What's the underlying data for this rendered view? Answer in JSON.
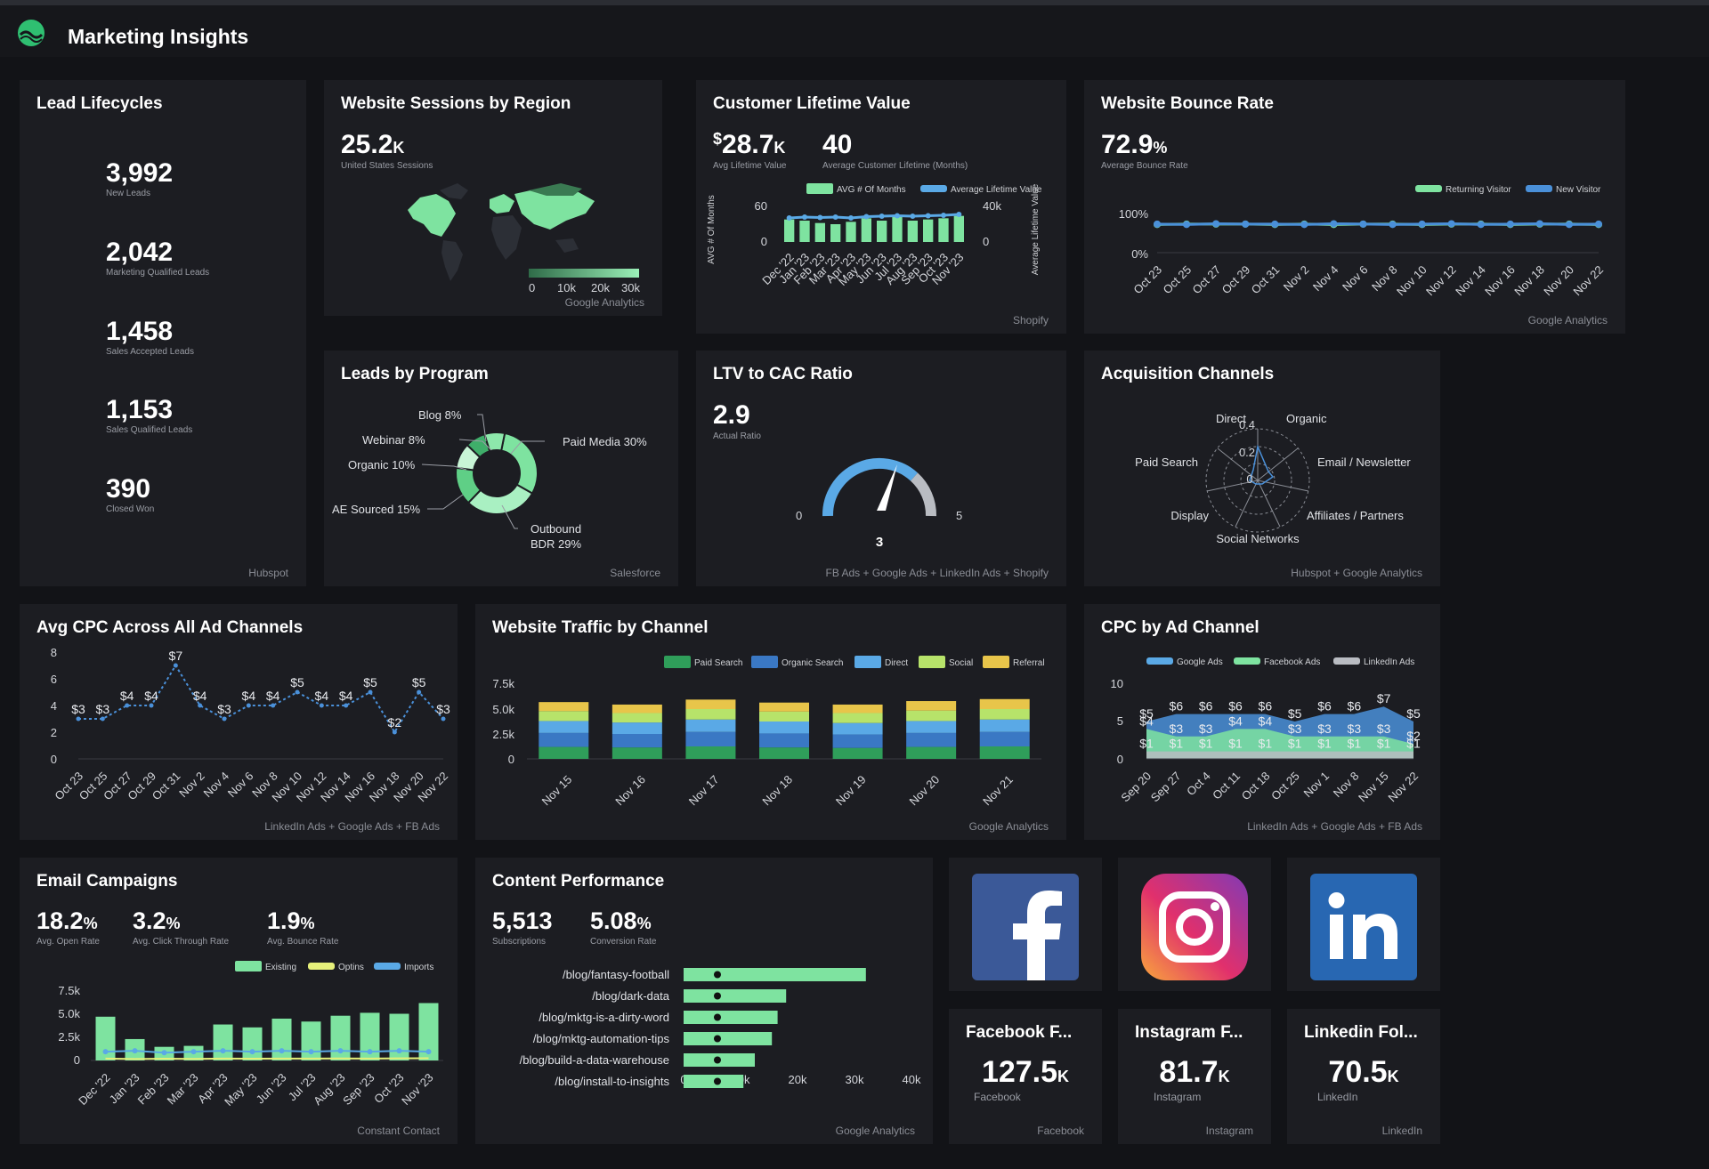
{
  "app": {
    "title": "Marketing Insights"
  },
  "lead_lifecycles": {
    "title": "Lead Lifecycles",
    "items": [
      {
        "value": "3,992",
        "label": "New Leads"
      },
      {
        "value": "2,042",
        "label": "Marketing Qualified Leads"
      },
      {
        "value": "1,458",
        "label": "Sales Accepted Leads"
      },
      {
        "value": "1,153",
        "label": "Sales Qualified Leads"
      },
      {
        "value": "390",
        "label": "Closed Won"
      }
    ],
    "source": "Hubspot"
  },
  "sessions_region": {
    "title": "Website Sessions by Region",
    "value": "25.2",
    "unit": "K",
    "label": "United States Sessions",
    "scale": [
      "0",
      "10k",
      "20k",
      "30k"
    ],
    "source": "Google Analytics"
  },
  "clv": {
    "title": "Customer Lifetime Value",
    "value1_prefix": "$",
    "value1": "28.7",
    "value1_unit": "K",
    "label1": "Avg Lifetime Value",
    "value2": "40",
    "label2": "Average Customer Lifetime (Months)",
    "legend": [
      "AVG # Of Months",
      "Average Lifetime Value"
    ],
    "left_axis_title": "AVG # Of Months",
    "right_axis_title": "Average Lifetime Value",
    "left_ticks": [
      "60",
      "0"
    ],
    "right_ticks": [
      "40k",
      "0"
    ],
    "source": "Shopify"
  },
  "bounce": {
    "title": "Website Bounce Rate",
    "value": "72.9",
    "unit": "%",
    "label": "Average Bounce Rate",
    "legend": [
      "Returning Visitor",
      "New Visitor"
    ],
    "y_ticks": [
      "100%",
      "0%"
    ],
    "source": "Google Analytics"
  },
  "leads_program": {
    "title": "Leads by Program",
    "slices": [
      "Blog 8%",
      "Webinar 8%",
      "Organic 10%",
      "AE Sourced 15%",
      "Paid Media 30%",
      "Outbound",
      "BDR 29%"
    ],
    "source": "Salesforce"
  },
  "ltv_cac": {
    "title": "LTV to CAC Ratio",
    "value": "2.9",
    "label": "Actual Ratio",
    "min": "0",
    "max": "5",
    "target": "3",
    "source": "FB Ads + Google Ads + LinkedIn Ads + Shopify"
  },
  "acquisition": {
    "title": "Acquisition Channels",
    "axes": [
      "Direct",
      "Organic",
      "Email / Newsletter",
      "Affiliates / Partners",
      "Social Networks",
      "Display",
      "Paid Search"
    ],
    "rings": [
      "0.4",
      "0.2",
      "0"
    ],
    "source": "Hubspot + Google Analytics"
  },
  "avg_cpc": {
    "title": "Avg CPC Across All Ad Channels",
    "y_ticks": [
      "8",
      "6",
      "4",
      "2",
      "0"
    ],
    "source": "LinkedIn Ads + Google Ads + FB Ads"
  },
  "traffic": {
    "title": "Website Traffic by Channel",
    "legend": [
      "Paid Search",
      "Organic Search",
      "Direct",
      "Social",
      "Referral"
    ],
    "y_ticks": [
      "7.5k",
      "5.0k",
      "2.5k",
      "0"
    ],
    "source": "Google Analytics"
  },
  "cpc_channel": {
    "title": "CPC by Ad Channel",
    "legend": [
      "Google Ads",
      "Facebook Ads",
      "LinkedIn Ads"
    ],
    "y_ticks": [
      "10",
      "5",
      "0"
    ],
    "source": "LinkedIn Ads + Google Ads + FB Ads"
  },
  "email": {
    "title": "Email Campaigns",
    "stats": [
      {
        "value": "18.2",
        "unit": "%",
        "label": "Avg. Open Rate"
      },
      {
        "value": "3.2",
        "unit": "%",
        "label": "Avg. Click Through Rate"
      },
      {
        "value": "1.9",
        "unit": "%",
        "label": "Avg. Bounce Rate"
      }
    ],
    "legend": [
      "Existing",
      "Optins",
      "Imports"
    ],
    "y_ticks": [
      "7.5k",
      "5.0k",
      "2.5k",
      "0"
    ],
    "source": "Constant Contact"
  },
  "content": {
    "title": "Content Performance",
    "stats": [
      {
        "value": "5,513",
        "unit": "",
        "label": "Subscriptions"
      },
      {
        "value": "5.08",
        "unit": "%",
        "label": "Conversion Rate"
      }
    ],
    "x_ticks": [
      "0",
      "10k",
      "20k",
      "30k",
      "40k"
    ],
    "source": "Google Analytics"
  },
  "social": [
    {
      "title": "Facebook F...",
      "value": "127.5",
      "unit": "K",
      "label": "Facebook",
      "source": "Facebook",
      "icon": "facebook-icon"
    },
    {
      "title": "Instagram F...",
      "value": "81.7",
      "unit": "K",
      "label": "Instagram",
      "source": "Instagram",
      "icon": "instagram-icon"
    },
    {
      "title": "Linkedin Fol...",
      "value": "70.5",
      "unit": "K",
      "label": "LinkedIn",
      "source": "LinkedIn",
      "icon": "linkedin-icon"
    }
  ],
  "colors": {
    "green": "#7ee3a0",
    "blue": "#4a90d9",
    "light_blue": "#5aa9e6",
    "yellow": "#e8c54a",
    "lime": "#b7e36a",
    "dark_green": "#2f9e5a"
  },
  "chart_data": [
    {
      "type": "line",
      "title": "Website Bounce Rate",
      "x": [
        "Oct 23",
        "Oct 25",
        "Oct 27",
        "Oct 29",
        "Oct 31",
        "Nov 2",
        "Nov 4",
        "Nov 6",
        "Nov 8",
        "Nov 10",
        "Nov 12",
        "Nov 14",
        "Nov 16",
        "Nov 18",
        "Nov 20",
        "Nov 22"
      ],
      "ylim": [
        0,
        100
      ],
      "series": [
        {
          "name": "Returning Visitor",
          "values": [
            72,
            73,
            73,
            73,
            72,
            73,
            72,
            73,
            73,
            72,
            73,
            73,
            72,
            73,
            73,
            72
          ]
        },
        {
          "name": "New Visitor",
          "values": [
            73,
            72,
            74,
            73,
            73,
            72,
            74,
            73,
            72,
            73,
            74,
            72,
            73,
            74,
            72,
            73
          ]
        }
      ]
    },
    {
      "type": "bar",
      "title": "Customer Lifetime Value",
      "categories": [
        "Dec '22",
        "Jan '23",
        "Feb '23",
        "Mar '23",
        "Apr '23",
        "May '23",
        "Jun '23",
        "Jul '23",
        "Aug '23",
        "Sep '23",
        "Oct '23",
        "Nov '23"
      ],
      "series": [
        {
          "name": "AVG # Of Months",
          "values": [
            38,
            36,
            32,
            30,
            34,
            40,
            36,
            42,
            36,
            38,
            40,
            44
          ]
        },
        {
          "name": "Average Lifetime Value",
          "values": [
            27000,
            28000,
            27500,
            28000,
            27000,
            28500,
            29000,
            29500,
            29000,
            29500,
            30000,
            31000
          ]
        }
      ]
    },
    {
      "type": "line",
      "title": "Avg CPC Across All Ad Channels",
      "x": [
        "Oct 23",
        "Oct 25",
        "Oct 27",
        "Oct 29",
        "Oct 31",
        "Nov 2",
        "Nov 4",
        "Nov 6",
        "Nov 8",
        "Nov 10",
        "Nov 12",
        "Nov 14",
        "Nov 16",
        "Nov 18",
        "Nov 20",
        "Nov 22"
      ],
      "ylim": [
        0,
        8
      ],
      "series": [
        {
          "name": "",
          "values": [
            3,
            3,
            4,
            4,
            7,
            4,
            3,
            4,
            4,
            5,
            4,
            4,
            5,
            2,
            5,
            3
          ]
        }
      ]
    },
    {
      "type": "bar",
      "title": "Website Traffic by Channel",
      "categories": [
        "Nov 15",
        "Nov 16",
        "Nov 17",
        "Nov 18",
        "Nov 19",
        "Nov 20",
        "Nov 21"
      ],
      "ylim": [
        0,
        7500
      ],
      "series": [
        {
          "name": "Paid Search",
          "values": [
            1200,
            1150,
            1250,
            1150,
            1100,
            1200,
            1250
          ]
        },
        {
          "name": "Organic Search",
          "values": [
            1400,
            1350,
            1450,
            1400,
            1350,
            1400,
            1450
          ]
        },
        {
          "name": "Direct",
          "values": [
            1200,
            1150,
            1250,
            1200,
            1150,
            1200,
            1250
          ]
        },
        {
          "name": "Social",
          "values": [
            1000,
            950,
            1050,
            1000,
            1000,
            1050,
            1050
          ]
        },
        {
          "name": "Referral",
          "values": [
            900,
            850,
            950,
            900,
            850,
            950,
            1000
          ]
        }
      ]
    },
    {
      "type": "area",
      "title": "CPC by Ad Channel",
      "x": [
        "Sep 20",
        "Sep 27",
        "Oct 4",
        "Oct 11",
        "Oct 18",
        "Oct 25",
        "Nov 1",
        "Nov 8",
        "Nov 15",
        "Nov 22"
      ],
      "ylim": [
        0,
        10
      ],
      "series": [
        {
          "name": "Google Ads",
          "values": [
            5,
            6,
            6,
            6,
            6,
            5,
            6,
            6,
            7,
            5
          ]
        },
        {
          "name": "Facebook Ads",
          "values": [
            4,
            3,
            3,
            4,
            4,
            3,
            3,
            3,
            3,
            2
          ]
        },
        {
          "name": "LinkedIn Ads",
          "values": [
            1,
            1,
            1,
            1,
            1,
            1,
            1,
            1,
            1,
            1
          ]
        }
      ]
    },
    {
      "type": "bar",
      "title": "Email Campaigns",
      "categories": [
        "Dec '22",
        "Jan '23",
        "Feb '23",
        "Mar '23",
        "Apr '23",
        "May '23",
        "Jun '23",
        "Jul '23",
        "Aug '23",
        "Sep '23",
        "Oct '23",
        "Nov '23"
      ],
      "ylim": [
        0,
        7500
      ],
      "series": [
        {
          "name": "Existing",
          "values": [
            4500,
            2200,
            1400,
            1500,
            3700,
            3400,
            4300,
            4000,
            4600,
            4900,
            4800,
            5900
          ]
        },
        {
          "name": "Optins",
          "values": [
            200,
            150,
            180,
            160,
            200,
            180,
            200,
            190,
            210,
            200,
            220,
            230
          ]
        },
        {
          "name": "Imports",
          "values": [
            900,
            1000,
            800,
            900,
            1000,
            900,
            1000,
            900,
            1000,
            900,
            1000,
            900
          ]
        }
      ]
    },
    {
      "type": "bar",
      "title": "Content Performance",
      "categories": [
        "/blog/fantasy-football",
        "/blog/dark-data",
        "/blog/mktg-is-a-dirty-word",
        "/blog/mktg-automation-tips",
        "/blog/build-a-data-warehouse",
        "/blog/install-to-insights"
      ],
      "xlim": [
        0,
        40000
      ],
      "values": [
        32000,
        18000,
        16500,
        15500,
        12500,
        10500
      ]
    },
    {
      "type": "pie",
      "title": "Leads by Program",
      "categories": [
        "Paid Media",
        "Outbound BDR",
        "AE Sourced",
        "Organic",
        "Webinar",
        "Blog"
      ],
      "values": [
        30,
        29,
        15,
        10,
        8,
        8
      ]
    }
  ]
}
